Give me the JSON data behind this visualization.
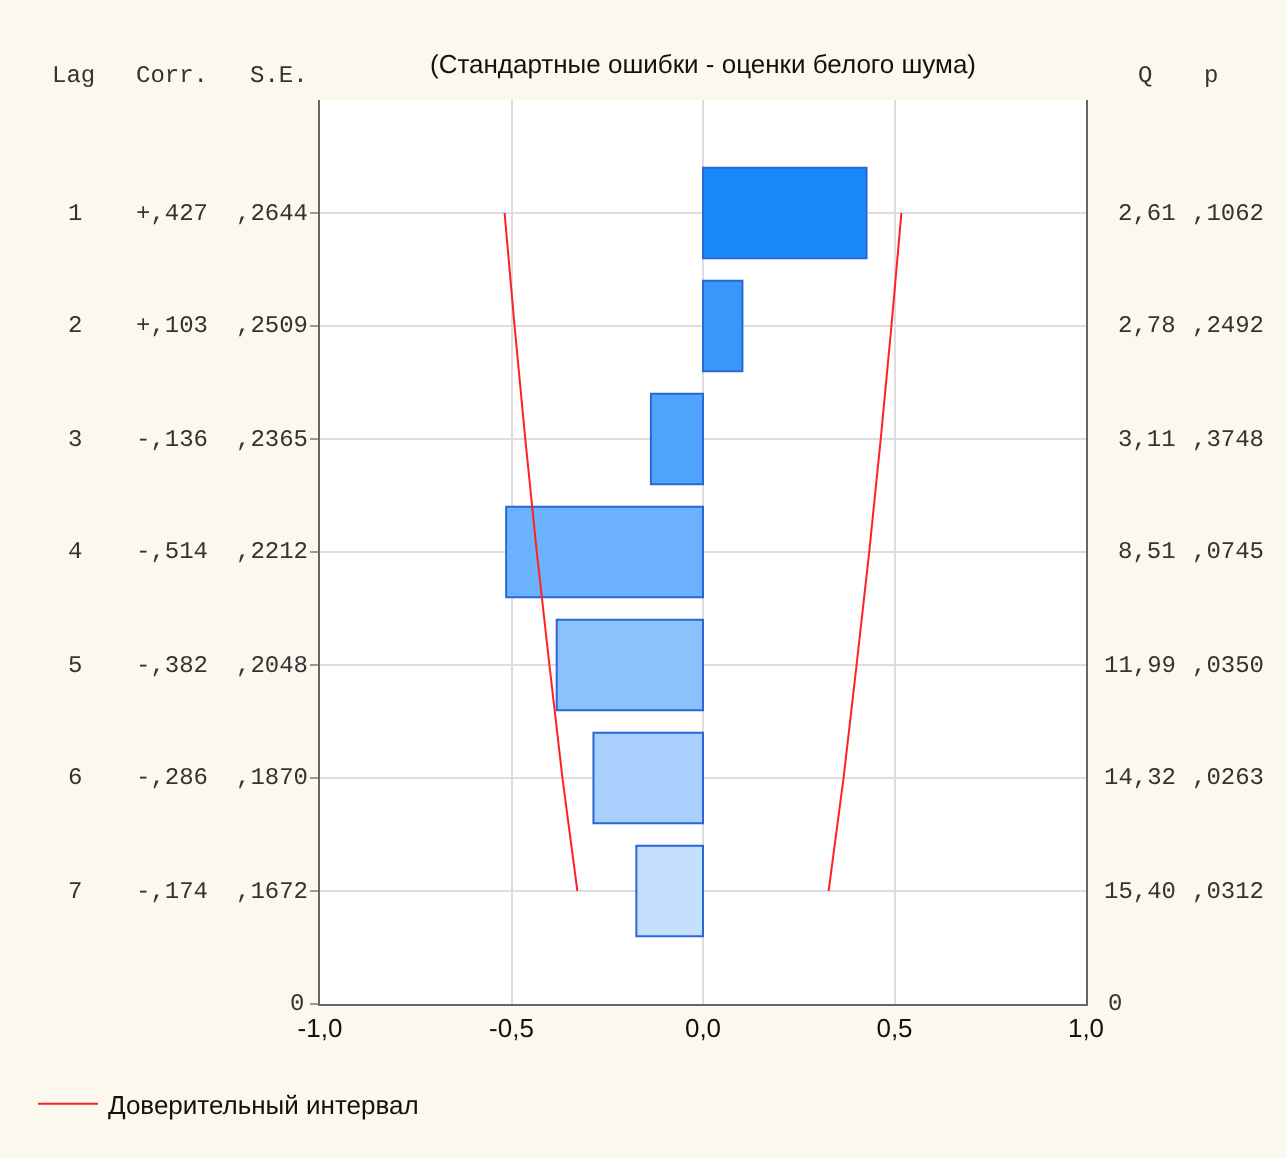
{
  "chart_data": {
    "type": "bar",
    "orientation": "horizontal",
    "title": "(Стандартные ошибки - оценки белого шума)",
    "categories": [
      null,
      null,
      null,
      null,
      null,
      null,
      null
    ],
    "series": [
      {
        "colors": [
          "#1a88fb",
          "#3898fb",
          "#4fa4fb",
          "#6cb1fb",
          "#8cc2fc",
          "#a9d0fd",
          "#c5e0fd"
        ],
        "values": [
          0.427,
          0.103,
          -0.136,
          -0.514,
          -0.382,
          -0.286,
          -0.174
        ]
      },
      {
        "type": "line",
        "name": "Доверительный интервал",
        "color": "#ff2020",
        "values": [
          -0.518,
          -0.492,
          -0.464,
          -0.434,
          -0.401,
          -0.367,
          -0.328
        ]
      },
      {
        "type": "line",
        "color": "#ff2020",
        "values": [
          0.518,
          0.492,
          0.464,
          0.434,
          0.401,
          0.367,
          0.328
        ]
      }
    ],
    "xlim": [
      -1,
      1
    ],
    "xticks": [
      {
        "value": -1,
        "label": "-1,0"
      },
      {
        "value": -0.5,
        "label": "-0,5"
      },
      {
        "value": 0,
        "label": "0,0"
      },
      {
        "value": 0.5,
        "label": "0,5"
      },
      {
        "value": 1,
        "label": "1,0"
      }
    ],
    "grid": true,
    "legend": "bottom left",
    "annotations": [
      "Lag",
      "Corr.",
      "S.E.",
      "Q",
      "p",
      "1",
      "+,427",
      ",2644",
      "2,61",
      ",1062",
      "2",
      "+,103",
      ",2509",
      "2,78",
      ",2492",
      "3",
      "-,136",
      ",2365",
      "3,11",
      ",3748",
      "4",
      "-,514",
      ",2212",
      "8,51",
      ",0745",
      "5",
      "-,382",
      ",2048",
      "11,99",
      ",0350",
      "6",
      "-,286",
      ",1870",
      "14,32",
      ",0263",
      "7",
      "-,174",
      ",1672",
      "15,40",
      ",0312",
      "0",
      "0"
    ]
  }
}
